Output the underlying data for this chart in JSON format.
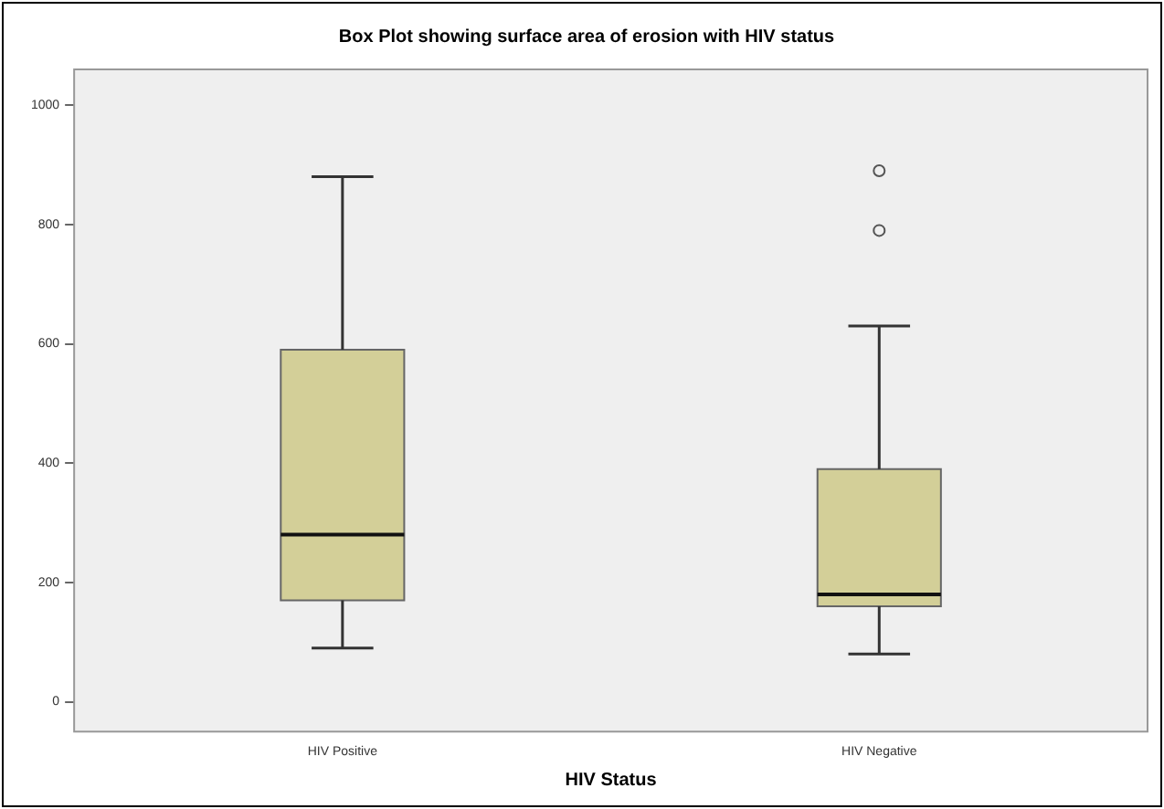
{
  "chart_data": {
    "type": "box",
    "title": "Box Plot showing surface area of erosion with HIV status",
    "xlabel": "HIV Status",
    "categories": [
      "HIV Positive",
      "HIV Negative"
    ],
    "boxes": [
      {
        "low": 90,
        "q1": 170,
        "median": 280,
        "q3": 590,
        "high": 880
      },
      {
        "low": 80,
        "q1": 160,
        "median": 180,
        "q3": 390,
        "high": 630,
        "outliers": [
          790,
          890
        ]
      }
    ],
    "color": "#d3cf98",
    "ylim": [
      -50,
      1060
    ],
    "yticks": [
      0,
      200,
      400,
      600,
      800,
      1000
    ],
    "grid": false,
    "legend": false
  }
}
